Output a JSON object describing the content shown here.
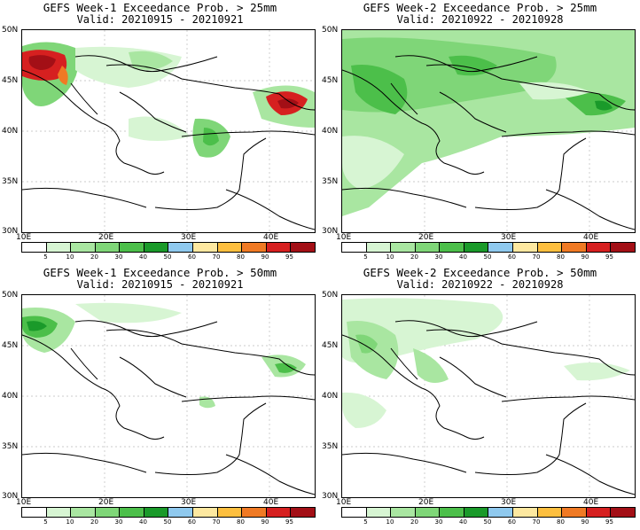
{
  "panels": [
    {
      "title": "GEFS Week-1 Exceedance Prob. > 25mm",
      "valid": "Valid: 20210915 - 20210921"
    },
    {
      "title": "GEFS Week-2 Exceedance Prob. > 25mm",
      "valid": "Valid: 20210922 - 20210928"
    },
    {
      "title": "GEFS Week-1 Exceedance Prob. > 50mm",
      "valid": "Valid: 20210915 - 20210921"
    },
    {
      "title": "GEFS Week-2 Exceedance Prob. > 50mm",
      "valid": "Valid: 20210922 - 20210928"
    }
  ],
  "axes": {
    "lat_labels": [
      "50N",
      "45N",
      "40N",
      "35N",
      "30N"
    ],
    "lon_labels": [
      "10E",
      "20E",
      "30E",
      "40E"
    ]
  },
  "colorbar": {
    "labels": [
      "5",
      "10",
      "20",
      "30",
      "40",
      "50",
      "60",
      "70",
      "80",
      "90",
      "95"
    ],
    "colors": [
      "#ffffff",
      "#d7f5d3",
      "#a9e6a1",
      "#7fd678",
      "#4cbf4a",
      "#1a9a2a",
      "#8fc9ee",
      "#fde8a0",
      "#fdbf3f",
      "#f07a24",
      "#d62020",
      "#a30f16"
    ]
  }
}
